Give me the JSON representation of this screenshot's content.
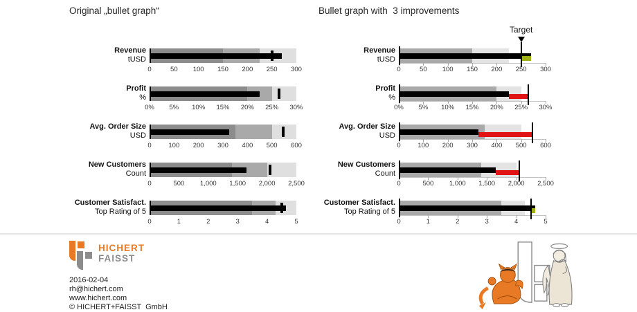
{
  "colors": {
    "positive": "#9db014",
    "negative": "#e01414",
    "bar": "#000000",
    "logo_orange": "#e87a25",
    "logo_gray": "#8c8c8c"
  },
  "chart_data": [
    {
      "type": "bullet",
      "title": "Original „bullet graph“",
      "improved": false,
      "target_style": "tick",
      "axis_baseline": false,
      "zone_colors": [
        "#8c8c8c",
        "#a9a9a9",
        "#dfdfdf"
      ],
      "rows": [
        {
          "label": "Revenue",
          "sublabel": "tUSD",
          "max": 300,
          "zones": [
            150,
            225,
            300
          ],
          "value": 270,
          "target": 250,
          "tick_values": [
            0,
            50,
            100,
            150,
            200,
            250,
            300
          ],
          "tick_labels": [
            "0",
            "50",
            "100",
            "150",
            "200",
            "250",
            "300"
          ]
        },
        {
          "label": "Profit",
          "sublabel": "%",
          "max": 30,
          "zones": [
            20,
            25,
            30
          ],
          "value": 22.5,
          "target": 26.5,
          "tick_values": [
            0,
            5,
            10,
            15,
            20,
            25,
            30
          ],
          "tick_labels": [
            "0%",
            "5%",
            "10%",
            "15%",
            "20%",
            "25%",
            "30%"
          ]
        },
        {
          "label": "Avg. Order Size",
          "sublabel": "USD",
          "max": 600,
          "zones": [
            350,
            500,
            600
          ],
          "value": 325,
          "target": 545,
          "tick_values": [
            0,
            100,
            200,
            300,
            400,
            500,
            600
          ],
          "tick_labels": [
            "0",
            "100",
            "200",
            "300",
            "400",
            "500",
            "600"
          ]
        },
        {
          "label": "New Customers",
          "sublabel": "Count",
          "max": 2500,
          "zones": [
            1400,
            2000,
            2500
          ],
          "value": 1650,
          "target": 2050,
          "tick_values": [
            0,
            500,
            1000,
            1500,
            2000,
            2500
          ],
          "tick_labels": [
            "0",
            "500",
            "1,000",
            "1,500",
            "2,000",
            "2,500"
          ]
        },
        {
          "label": "Customer Satisfact.",
          "sublabel": "Top Rating of 5",
          "max": 5,
          "zones": [
            3.5,
            4.3,
            5
          ],
          "value": 4.65,
          "target": 4.5,
          "tick_values": [
            0,
            1,
            2,
            3,
            4,
            5
          ],
          "tick_labels": [
            "0",
            "1",
            "2",
            "3",
            "4",
            "5"
          ]
        }
      ]
    },
    {
      "type": "bullet",
      "title": "Bullet graph with  3 improvements",
      "improved": true,
      "target_style": "line",
      "axis_baseline": true,
      "target_label": "Target",
      "target_pointer_row": 0,
      "zone_colors": [
        "#a9a9a9",
        "#e3e3e3",
        "transparent"
      ],
      "rows": [
        {
          "label": "Revenue",
          "sublabel": "tUSD",
          "max": 300,
          "zones": [
            150,
            225,
            300
          ],
          "value": 270,
          "target": 250,
          "tick_values": [
            0,
            50,
            100,
            150,
            200,
            250,
            300
          ],
          "tick_labels": [
            "0",
            "50",
            "100",
            "150",
            "200",
            "250",
            "300"
          ]
        },
        {
          "label": "Profit",
          "sublabel": "%",
          "max": 30,
          "zones": [
            20,
            25,
            30
          ],
          "value": 22.5,
          "target": 26.5,
          "tick_values": [
            0,
            5,
            10,
            15,
            20,
            25,
            30
          ],
          "tick_labels": [
            "0%",
            "5%",
            "10%",
            "15%",
            "20%",
            "25%",
            "30%"
          ]
        },
        {
          "label": "Avg. Order Size",
          "sublabel": "USD",
          "max": 600,
          "zones": [
            350,
            500,
            600
          ],
          "value": 325,
          "target": 545,
          "tick_values": [
            0,
            100,
            200,
            300,
            400,
            500,
            600
          ],
          "tick_labels": [
            "0",
            "100",
            "200",
            "300",
            "400",
            "500",
            "600"
          ]
        },
        {
          "label": "New Customers",
          "sublabel": "Count",
          "max": 2500,
          "zones": [
            1400,
            2000,
            2500
          ],
          "value": 1650,
          "target": 2050,
          "tick_values": [
            0,
            500,
            1000,
            1500,
            2000,
            2500
          ],
          "tick_labels": [
            "0",
            "500",
            "1,000",
            "1,500",
            "2,000",
            "2,500"
          ]
        },
        {
          "label": "Customer Satisfact.",
          "sublabel": "Top Rating of 5",
          "max": 5,
          "zones": [
            3.5,
            4.3,
            5
          ],
          "value": 4.65,
          "target": 4.5,
          "tick_values": [
            0,
            1,
            2,
            3,
            4,
            5
          ],
          "tick_labels": [
            "0",
            "1",
            "2",
            "3",
            "4",
            "5"
          ]
        }
      ]
    }
  ],
  "logo": {
    "line1": "HICHERT",
    "line2": "FAISST"
  },
  "footer": {
    "lines": [
      "2016-02-04",
      "rh@hichert.com",
      "www.hichert.com",
      "© HICHERT+FAISST  GmbH"
    ]
  }
}
